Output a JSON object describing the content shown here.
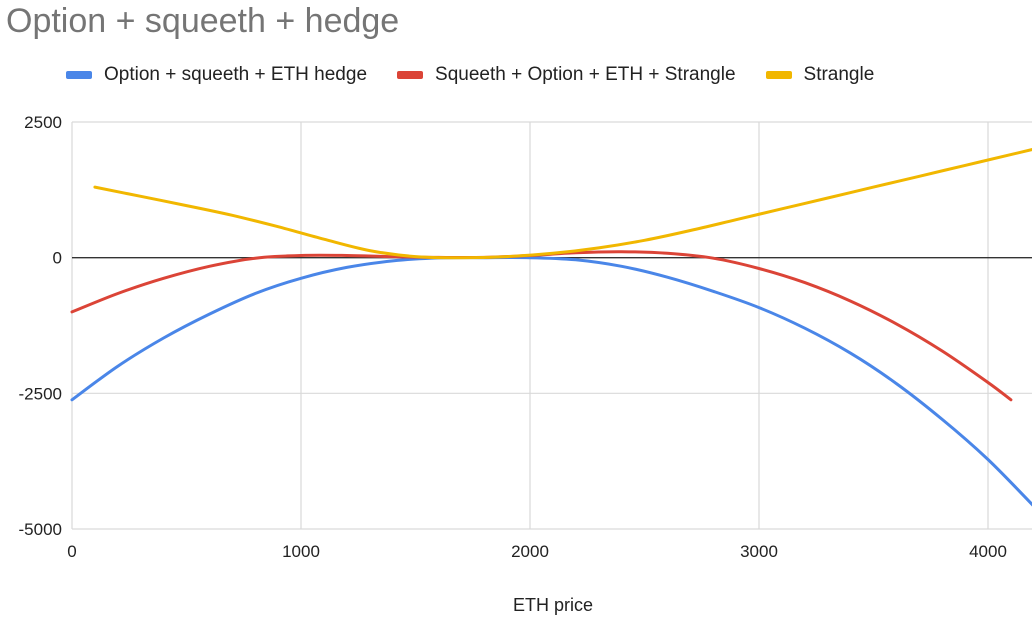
{
  "chart_data": {
    "type": "line",
    "title": "Option + squeeth + hedge",
    "xlabel": "ETH price",
    "ylabel": "",
    "xlim": [
      0,
      4200
    ],
    "ylim": [
      -5000,
      2500
    ],
    "xticks": [
      0,
      1000,
      2000,
      3000,
      4000
    ],
    "yticks": [
      2500,
      0,
      -2500,
      -5000
    ],
    "xtick_labels": [
      "0",
      "1000",
      "2000",
      "3000",
      "4000"
    ],
    "ytick_labels": [
      "2500",
      "0",
      "-2500",
      "-5000"
    ],
    "grid": true,
    "legend_position": "top",
    "series": [
      {
        "name": "Option + squeeth + ETH hedge",
        "color": "#4a86e8",
        "x": [
          0,
          200,
          400,
          600,
          800,
          1000,
          1200,
          1400,
          1600,
          1800,
          2000,
          2200,
          2400,
          2600,
          2800,
          3000,
          3200,
          3400,
          3600,
          3800,
          4000,
          4200
        ],
        "y": [
          -2620,
          -2000,
          -1480,
          -1040,
          -660,
          -380,
          -180,
          -60,
          -5,
          0,
          0,
          -40,
          -160,
          -360,
          -620,
          -920,
          -1300,
          -1760,
          -2320,
          -2980,
          -3720,
          -4580
        ]
      },
      {
        "name": "Squeeth + Option + ETH + Strangle",
        "color": "#db4437",
        "x": [
          0,
          200,
          400,
          600,
          800,
          1000,
          1200,
          1400,
          1600,
          1800,
          2000,
          2200,
          2400,
          2600,
          2800,
          3000,
          3200,
          3400,
          3600,
          3800,
          4000,
          4100
        ],
        "y": [
          -1000,
          -660,
          -380,
          -160,
          -10,
          40,
          40,
          20,
          5,
          5,
          40,
          90,
          110,
          80,
          -10,
          -200,
          -460,
          -800,
          -1220,
          -1720,
          -2300,
          -2620
        ]
      },
      {
        "name": "Strangle",
        "color": "#f1b700",
        "x": [
          100,
          300,
          500,
          700,
          900,
          1100,
          1300,
          1500,
          1700,
          1900,
          2100,
          2300,
          2500,
          2700,
          2900,
          3100,
          3300,
          3500,
          3700,
          3900,
          4100,
          4200
        ],
        "y": [
          1300,
          1130,
          960,
          780,
          570,
          340,
          130,
          20,
          0,
          20,
          80,
          180,
          320,
          500,
          700,
          900,
          1100,
          1300,
          1500,
          1700,
          1900,
          2000
        ]
      }
    ]
  }
}
